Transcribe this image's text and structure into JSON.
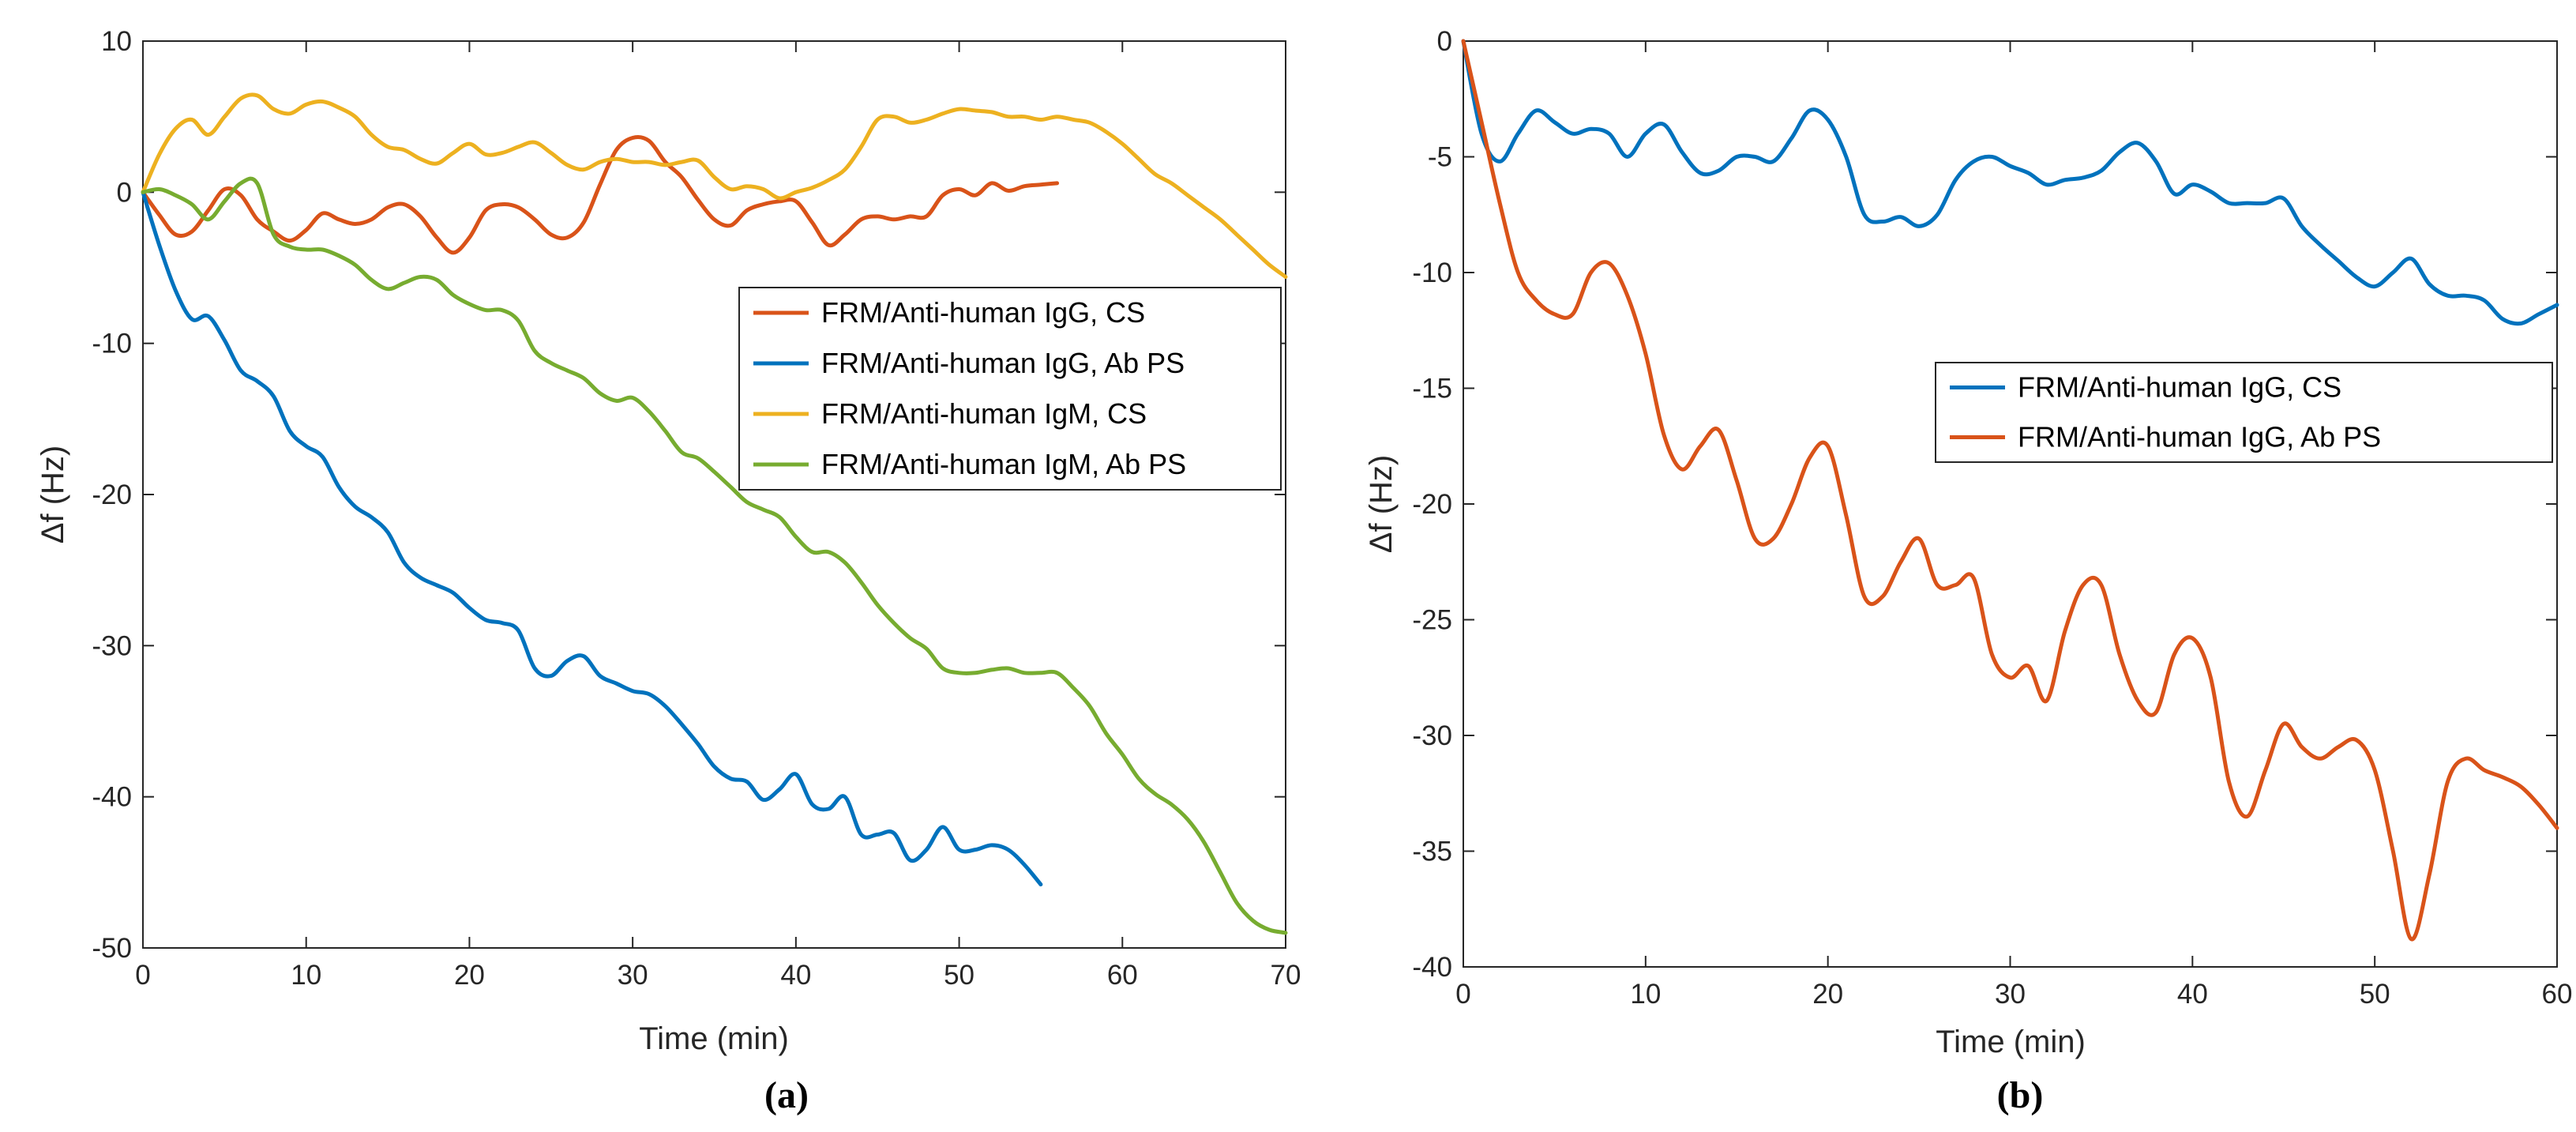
{
  "chart_data": [
    {
      "type": "line",
      "panel_label": "(a)",
      "xlabel": "Time (min)",
      "ylabel": "Δf (Hz)",
      "xlim": [
        0,
        70
      ],
      "ylim": [
        -50,
        10
      ],
      "xticks": [
        0,
        10,
        20,
        30,
        40,
        50,
        60,
        70
      ],
      "yticks": [
        10,
        0,
        -10,
        -20,
        -30,
        -40,
        -50
      ],
      "legend_position": "center-right",
      "series": [
        {
          "name": "FRM/Anti-human IgG, CS",
          "color": "#D95319",
          "x": [
            0,
            1,
            2,
            3,
            4,
            5,
            6,
            7,
            8,
            9,
            10,
            11,
            12,
            13,
            14,
            15,
            16,
            17,
            18,
            19,
            20,
            21,
            22,
            23,
            24,
            25,
            26,
            27,
            28,
            29,
            30,
            31,
            32,
            33,
            34,
            35,
            36,
            37,
            38,
            39,
            40,
            41,
            42,
            43,
            44,
            45,
            46,
            47,
            48,
            49,
            50,
            51,
            52,
            53,
            54,
            55,
            56
          ],
          "y": [
            0,
            -1.5,
            -2.8,
            -2.6,
            -1.2,
            0.2,
            -0.2,
            -1.8,
            -2.6,
            -3.2,
            -2.5,
            -1.4,
            -1.8,
            -2.1,
            -1.8,
            -1.0,
            -0.8,
            -1.6,
            -3.0,
            -4.0,
            -3.0,
            -1.2,
            -0.8,
            -1.0,
            -1.8,
            -2.8,
            -3.0,
            -2.0,
            0.5,
            2.8,
            3.6,
            3.4,
            2.0,
            1.0,
            -0.5,
            -1.8,
            -2.2,
            -1.2,
            -0.8,
            -0.6,
            -0.6,
            -2.0,
            -3.5,
            -2.8,
            -1.8,
            -1.6,
            -1.8,
            -1.6,
            -1.6,
            -0.2,
            0.2,
            -0.2,
            0.6,
            0.1,
            0.4,
            0.5,
            0.6
          ]
        },
        {
          "name": "FRM/Anti-human IgG, Ab PS",
          "color": "#0072BD",
          "x": [
            0,
            1,
            2,
            3,
            4,
            5,
            6,
            7,
            8,
            9,
            10,
            11,
            12,
            13,
            14,
            15,
            16,
            17,
            18,
            19,
            20,
            21,
            22,
            23,
            24,
            25,
            26,
            27,
            28,
            29,
            30,
            31,
            32,
            33,
            34,
            35,
            36,
            37,
            38,
            39,
            40,
            41,
            42,
            43,
            44,
            45,
            46,
            47,
            48,
            49,
            50,
            51,
            52,
            53,
            54,
            55
          ],
          "y": [
            0,
            -3.5,
            -6.5,
            -8.4,
            -8.2,
            -9.8,
            -11.8,
            -12.5,
            -13.5,
            -15.8,
            -16.8,
            -17.5,
            -19.5,
            -20.8,
            -21.5,
            -22.5,
            -24.5,
            -25.5,
            -26.0,
            -26.5,
            -27.5,
            -28.3,
            -28.5,
            -29.0,
            -31.5,
            -32.0,
            -31.0,
            -30.7,
            -32.0,
            -32.5,
            -33.0,
            -33.2,
            -34.0,
            -35.2,
            -36.5,
            -38.0,
            -38.8,
            -39.0,
            -40.2,
            -39.5,
            -38.5,
            -40.5,
            -40.8,
            -40.0,
            -42.5,
            -42.5,
            -42.4,
            -44.2,
            -43.5,
            -42.0,
            -43.5,
            -43.5,
            -43.2,
            -43.5,
            -44.5,
            -45.8
          ]
        },
        {
          "name": "FRM/Anti-human IgM, CS",
          "color": "#EDB120",
          "x": [
            0,
            1,
            2,
            3,
            4,
            5,
            6,
            7,
            8,
            9,
            10,
            11,
            12,
            13,
            14,
            15,
            16,
            17,
            18,
            19,
            20,
            21,
            22,
            23,
            24,
            25,
            26,
            27,
            28,
            29,
            30,
            31,
            32,
            33,
            34,
            35,
            36,
            37,
            38,
            39,
            40,
            41,
            42,
            43,
            44,
            45,
            46,
            47,
            48,
            49,
            50,
            51,
            52,
            53,
            54,
            55,
            56,
            57,
            58,
            59,
            60,
            61,
            62,
            63,
            64,
            65,
            66,
            67,
            68,
            69,
            70
          ],
          "y": [
            0,
            2.5,
            4.2,
            4.8,
            3.8,
            5.0,
            6.2,
            6.4,
            5.5,
            5.2,
            5.8,
            6.0,
            5.6,
            5.0,
            3.8,
            3.0,
            2.8,
            2.2,
            1.9,
            2.6,
            3.2,
            2.5,
            2.6,
            3.0,
            3.3,
            2.6,
            1.8,
            1.5,
            2.0,
            2.2,
            2.0,
            2.0,
            1.8,
            2.0,
            2.1,
            1.0,
            0.2,
            0.4,
            0.2,
            -0.4,
            0,
            0.3,
            0.8,
            1.5,
            3.0,
            4.8,
            5.0,
            4.6,
            4.8,
            5.2,
            5.5,
            5.4,
            5.3,
            5.0,
            5.0,
            4.8,
            5.0,
            4.8,
            4.6,
            4.0,
            3.2,
            2.2,
            1.2,
            0.6,
            -0.2,
            -1.0,
            -1.8,
            -2.8,
            -3.8,
            -4.8,
            -5.6
          ]
        },
        {
          "name": "FRM/Anti-human IgM, Ab PS",
          "color": "#77AC30",
          "x": [
            0,
            1,
            2,
            3,
            4,
            5,
            6,
            7,
            8,
            9,
            10,
            11,
            12,
            13,
            14,
            15,
            16,
            17,
            18,
            19,
            20,
            21,
            22,
            23,
            24,
            25,
            26,
            27,
            28,
            29,
            30,
            31,
            32,
            33,
            34,
            35,
            36,
            37,
            38,
            39,
            40,
            41,
            42,
            43,
            44,
            45,
            46,
            47,
            48,
            49,
            50,
            51,
            52,
            53,
            54,
            55,
            56,
            57,
            58,
            59,
            60,
            61,
            62,
            63,
            64,
            65,
            66,
            67,
            68,
            69,
            70
          ],
          "y": [
            0,
            0.2,
            -0.2,
            -0.8,
            -1.8,
            -0.6,
            0.6,
            0.6,
            -2.8,
            -3.6,
            -3.8,
            -3.8,
            -4.2,
            -4.8,
            -5.8,
            -6.4,
            -6.0,
            -5.6,
            -5.8,
            -6.8,
            -7.4,
            -7.8,
            -7.8,
            -8.5,
            -10.5,
            -11.3,
            -11.8,
            -12.3,
            -13.3,
            -13.8,
            -13.6,
            -14.5,
            -15.8,
            -17.2,
            -17.6,
            -18.5,
            -19.5,
            -20.5,
            -21.0,
            -21.5,
            -22.8,
            -23.8,
            -23.8,
            -24.5,
            -25.8,
            -27.3,
            -28.5,
            -29.5,
            -30.2,
            -31.5,
            -31.8,
            -31.8,
            -31.6,
            -31.5,
            -31.8,
            -31.8,
            -31.8,
            -32.8,
            -34.0,
            -35.8,
            -37.2,
            -38.8,
            -39.8,
            -40.5,
            -41.5,
            -43.0,
            -45.0,
            -47.0,
            -48.2,
            -48.8,
            -49.0
          ]
        }
      ]
    },
    {
      "type": "line",
      "panel_label": "(b)",
      "xlabel": "Time (min)",
      "ylabel": "Δf (Hz)",
      "xlim": [
        0,
        60
      ],
      "ylim": [
        -40,
        0
      ],
      "xticks": [
        0,
        10,
        20,
        30,
        40,
        50,
        60
      ],
      "yticks": [
        0,
        -5,
        -10,
        -15,
        -20,
        -25,
        -30,
        -35,
        -40
      ],
      "legend_position": "center-right",
      "series": [
        {
          "name": "FRM/Anti-human IgG, CS",
          "color": "#0072BD",
          "x": [
            0,
            1,
            2,
            3,
            4,
            5,
            6,
            7,
            8,
            9,
            10,
            11,
            12,
            13,
            14,
            15,
            16,
            17,
            18,
            19,
            20,
            21,
            22,
            23,
            24,
            25,
            26,
            27,
            28,
            29,
            30,
            31,
            32,
            33,
            34,
            35,
            36,
            37,
            38,
            39,
            40,
            41,
            42,
            43,
            44,
            45,
            46,
            47,
            48,
            49,
            50,
            51,
            52,
            53,
            54,
            55,
            56,
            57,
            58,
            59,
            60
          ],
          "y": [
            0,
            -4.0,
            -5.2,
            -4.0,
            -3.0,
            -3.5,
            -4.0,
            -3.8,
            -4.0,
            -5.0,
            -4.0,
            -3.6,
            -4.8,
            -5.7,
            -5.6,
            -5.0,
            -5.0,
            -5.2,
            -4.2,
            -3.0,
            -3.4,
            -5.0,
            -7.5,
            -7.8,
            -7.6,
            -8.0,
            -7.5,
            -6.0,
            -5.2,
            -5.0,
            -5.4,
            -5.7,
            -6.2,
            -6.0,
            -5.9,
            -5.6,
            -4.8,
            -4.4,
            -5.2,
            -6.6,
            -6.2,
            -6.5,
            -7.0,
            -7.0,
            -7.0,
            -6.8,
            -8.0,
            -8.8,
            -9.5,
            -10.2,
            -10.6,
            -10.0,
            -9.4,
            -10.5,
            -11.0,
            -11.0,
            -11.2,
            -12.0,
            -12.2,
            -11.8,
            -11.4
          ]
        },
        {
          "name": "FRM/Anti-human IgG, Ab PS",
          "color": "#D95319",
          "x": [
            0,
            1,
            2,
            3,
            4,
            5,
            6,
            7,
            8,
            9,
            10,
            11,
            12,
            13,
            14,
            15,
            16,
            17,
            18,
            19,
            20,
            21,
            22,
            23,
            24,
            25,
            26,
            27,
            28,
            29,
            30,
            31,
            32,
            33,
            34,
            35,
            36,
            37,
            38,
            39,
            40,
            41,
            42,
            43,
            44,
            45,
            46,
            47,
            48,
            49,
            50,
            51,
            52,
            53,
            54,
            55,
            56,
            57,
            58,
            59,
            60
          ],
          "y": [
            0,
            -3.5,
            -7.0,
            -10.0,
            -11.2,
            -11.8,
            -11.8,
            -10.0,
            -9.6,
            -11.0,
            -13.5,
            -17.0,
            -18.5,
            -17.5,
            -16.8,
            -19.0,
            -21.5,
            -21.5,
            -20.0,
            -18.0,
            -17.5,
            -20.5,
            -24.0,
            -24.0,
            -22.5,
            -21.5,
            -23.5,
            -23.5,
            -23.2,
            -26.5,
            -27.5,
            -27.0,
            -28.5,
            -25.5,
            -23.5,
            -23.5,
            -26.5,
            -28.5,
            -29.0,
            -26.5,
            -25.8,
            -27.5,
            -32.0,
            -33.5,
            -31.5,
            -29.5,
            -30.5,
            -31.0,
            -30.5,
            -30.2,
            -31.5,
            -35.0,
            -38.8,
            -36.0,
            -32.0,
            -31.0,
            -31.5,
            -31.8,
            -32.2,
            -33.0,
            -34.0
          ]
        }
      ]
    }
  ]
}
